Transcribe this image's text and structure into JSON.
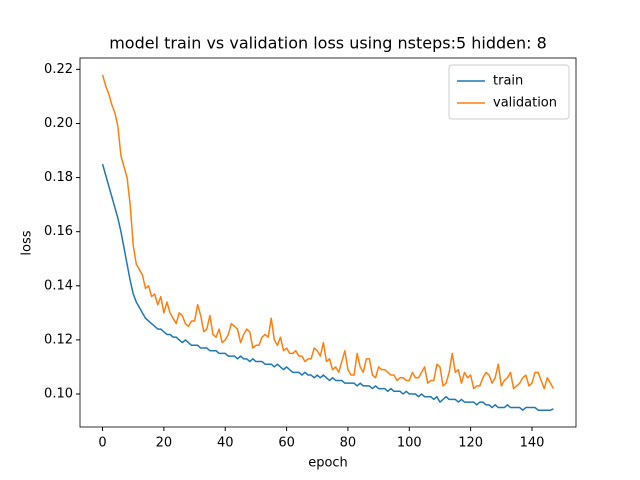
{
  "chart_data": {
    "type": "line",
    "title": "model train vs validation loss using nsteps:5 hidden: 8",
    "x_label": "epoch",
    "y_label": "loss",
    "x": [
      0,
      1,
      2,
      3,
      4,
      5,
      6,
      7,
      8,
      9,
      10,
      11,
      12,
      13,
      14,
      15,
      16,
      17,
      18,
      19,
      20,
      21,
      22,
      23,
      24,
      25,
      26,
      27,
      28,
      29,
      30,
      31,
      32,
      33,
      34,
      35,
      36,
      37,
      38,
      39,
      40,
      41,
      42,
      43,
      44,
      45,
      46,
      47,
      48,
      49,
      50,
      51,
      52,
      53,
      54,
      55,
      56,
      57,
      58,
      59,
      60,
      61,
      62,
      63,
      64,
      65,
      66,
      67,
      68,
      69,
      70,
      71,
      72,
      73,
      74,
      75,
      76,
      77,
      78,
      79,
      80,
      81,
      82,
      83,
      84,
      85,
      86,
      87,
      88,
      89,
      90,
      91,
      92,
      93,
      94,
      95,
      96,
      97,
      98,
      99,
      100,
      101,
      102,
      103,
      104,
      105,
      106,
      107,
      108,
      109,
      110,
      111,
      112,
      113,
      114,
      115,
      116,
      117,
      118,
      119,
      120,
      121,
      122,
      123,
      124,
      125,
      126,
      127,
      128,
      129,
      130,
      131,
      132,
      133,
      134,
      135,
      136,
      137,
      138,
      139,
      140,
      141,
      142,
      143,
      144,
      145,
      146,
      147
    ],
    "series": [
      {
        "name": "train",
        "color": "#1f77b4",
        "values": [
          0.185,
          0.181,
          0.177,
          0.173,
          0.169,
          0.165,
          0.16,
          0.154,
          0.148,
          0.142,
          0.137,
          0.134,
          0.132,
          0.13,
          0.128,
          0.127,
          0.126,
          0.125,
          0.124,
          0.124,
          0.123,
          0.122,
          0.122,
          0.121,
          0.121,
          0.12,
          0.119,
          0.12,
          0.119,
          0.118,
          0.118,
          0.118,
          0.117,
          0.117,
          0.117,
          0.116,
          0.116,
          0.116,
          0.115,
          0.115,
          0.115,
          0.114,
          0.114,
          0.114,
          0.113,
          0.114,
          0.113,
          0.113,
          0.112,
          0.113,
          0.112,
          0.112,
          0.112,
          0.111,
          0.111,
          0.111,
          0.11,
          0.111,
          0.11,
          0.109,
          0.11,
          0.109,
          0.108,
          0.108,
          0.108,
          0.107,
          0.108,
          0.107,
          0.107,
          0.106,
          0.107,
          0.106,
          0.107,
          0.106,
          0.105,
          0.106,
          0.105,
          0.105,
          0.105,
          0.104,
          0.104,
          0.104,
          0.104,
          0.103,
          0.104,
          0.103,
          0.103,
          0.103,
          0.102,
          0.103,
          0.102,
          0.102,
          0.102,
          0.101,
          0.102,
          0.101,
          0.101,
          0.101,
          0.1,
          0.101,
          0.1,
          0.1,
          0.1,
          0.099,
          0.1,
          0.099,
          0.099,
          0.099,
          0.098,
          0.099,
          0.097,
          0.098,
          0.099,
          0.098,
          0.098,
          0.098,
          0.097,
          0.098,
          0.097,
          0.097,
          0.097,
          0.097,
          0.096,
          0.097,
          0.097,
          0.096,
          0.096,
          0.095,
          0.096,
          0.095,
          0.095,
          0.095,
          0.096,
          0.095,
          0.095,
          0.095,
          0.095,
          0.094,
          0.095,
          0.095,
          0.095,
          0.095,
          0.094,
          0.094,
          0.094,
          0.094,
          0.094,
          0.0945
        ]
      },
      {
        "name": "validation",
        "color": "#ff7f0e",
        "values": [
          0.218,
          0.214,
          0.211,
          0.207,
          0.204,
          0.199,
          0.188,
          0.184,
          0.18,
          0.17,
          0.155,
          0.148,
          0.146,
          0.144,
          0.139,
          0.14,
          0.136,
          0.137,
          0.133,
          0.136,
          0.13,
          0.134,
          0.13,
          0.128,
          0.126,
          0.13,
          0.129,
          0.126,
          0.125,
          0.127,
          0.127,
          0.133,
          0.129,
          0.123,
          0.124,
          0.129,
          0.122,
          0.121,
          0.124,
          0.119,
          0.12,
          0.122,
          0.126,
          0.125,
          0.124,
          0.119,
          0.122,
          0.124,
          0.123,
          0.117,
          0.118,
          0.118,
          0.121,
          0.122,
          0.121,
          0.128,
          0.12,
          0.118,
          0.121,
          0.116,
          0.117,
          0.115,
          0.115,
          0.116,
          0.114,
          0.114,
          0.112,
          0.113,
          0.113,
          0.117,
          0.116,
          0.114,
          0.119,
          0.112,
          0.113,
          0.109,
          0.11,
          0.108,
          0.112,
          0.116,
          0.109,
          0.107,
          0.107,
          0.115,
          0.11,
          0.108,
          0.113,
          0.113,
          0.107,
          0.106,
          0.11,
          0.109,
          0.109,
          0.108,
          0.107,
          0.107,
          0.105,
          0.106,
          0.106,
          0.105,
          0.105,
          0.108,
          0.106,
          0.106,
          0.108,
          0.11,
          0.104,
          0.105,
          0.105,
          0.111,
          0.11,
          0.103,
          0.104,
          0.108,
          0.115,
          0.108,
          0.109,
          0.104,
          0.108,
          0.106,
          0.107,
          0.102,
          0.103,
          0.103,
          0.106,
          0.108,
          0.107,
          0.104,
          0.106,
          0.111,
          0.103,
          0.105,
          0.106,
          0.108,
          0.102,
          0.103,
          0.104,
          0.106,
          0.107,
          0.103,
          0.104,
          0.108,
          0.108,
          0.105,
          0.102,
          0.106,
          0.104,
          0.102
        ]
      }
    ],
    "xlim": [
      -7.35,
      154.35
    ],
    "xticks": [
      0,
      20,
      40,
      60,
      80,
      100,
      120,
      140
    ],
    "ylim": [
      0.0878,
      0.2242
    ],
    "yticks": [
      {
        "value": 0.1,
        "label": "0.10"
      },
      0.12,
      0.14,
      0.16,
      0.18,
      {
        "value": 0.2,
        "label": "0.20"
      },
      0.22
    ],
    "legend": "upper right"
  }
}
